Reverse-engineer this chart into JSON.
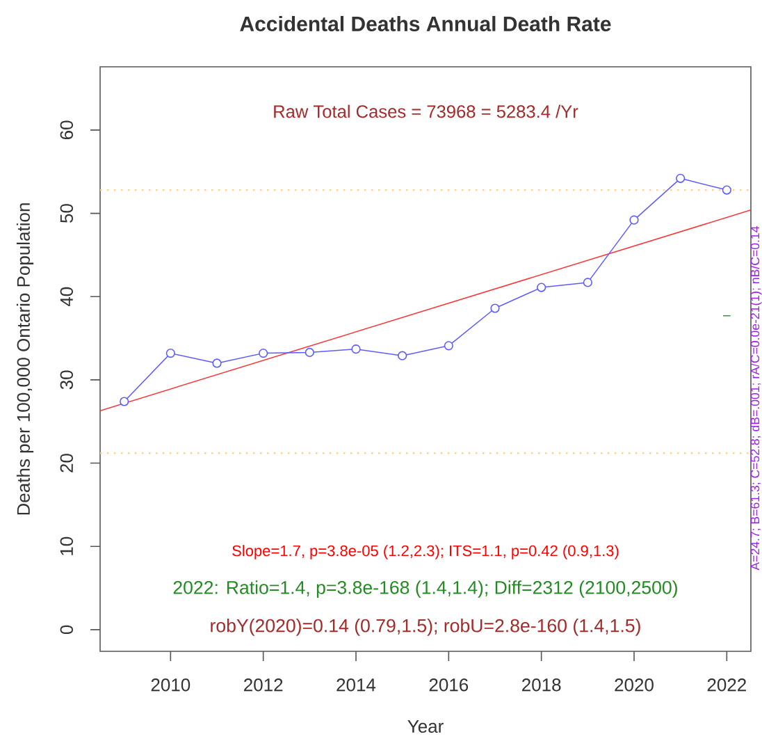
{
  "chart_data": {
    "type": "line",
    "title": "Accidental Deaths Annual Death Rate",
    "xlabel": "Year",
    "ylabel": "Deaths per 100,000 Ontario Population",
    "x": [
      2009,
      2010,
      2011,
      2012,
      2013,
      2014,
      2015,
      2016,
      2017,
      2018,
      2019,
      2020,
      2021,
      2022
    ],
    "series": [
      {
        "color": "#5c5cff",
        "values": [
          27.4,
          33.2,
          32.0,
          33.2,
          33.3,
          33.7,
          32.9,
          34.1,
          38.6,
          41.1,
          41.7,
          49.2,
          54.2,
          52.8
        ]
      },
      {
        "color": "#ff3333",
        "x": [
          2008.48,
          2022.52
        ],
        "values": [
          26.3,
          50.4
        ],
        "marker": "none"
      },
      {
        "color": "#3c963c",
        "x": [
          2021.92,
          2022.08
        ],
        "values": [
          37.7,
          37.7
        ],
        "marker": "none"
      }
    ],
    "marker": "circle",
    "xlim": [
      2008.48,
      2022.52
    ],
    "ylim": [
      -2.6,
      67.6
    ],
    "xticks": [
      2010,
      2012,
      2014,
      2016,
      2018,
      2020,
      2022
    ],
    "yticks": [
      0,
      10,
      20,
      30,
      40,
      50,
      60
    ],
    "ref_lines": [
      {
        "axis": "y",
        "value": 52.8,
        "color": "#ffcf8f",
        "line_style": "dotted"
      },
      {
        "axis": "y",
        "value": 21.2,
        "color": "#ffcf8f",
        "line_style": "dotted"
      }
    ],
    "annotations": [
      "Raw Total Cases = 73968 = 5283.4 /Yr",
      "Slope=1.7, p=3.8e-05 (1.2,2.3);  ITS=1.1, p=0.42 (0.9,1.3)",
      "2022:  Ratio=1.4, p=3.8e-168 (1.4,1.4);  Diff=2312 (2100,2500)",
      "robY(2020)=0.14 (0.79,1.5); robU=2.8e-160 (1.4,1.5)",
      "A=24.7; B=61.3; C=52.8; dB=.001; rA/C=0.0e-21(1); nB/C=0.14"
    ]
  }
}
